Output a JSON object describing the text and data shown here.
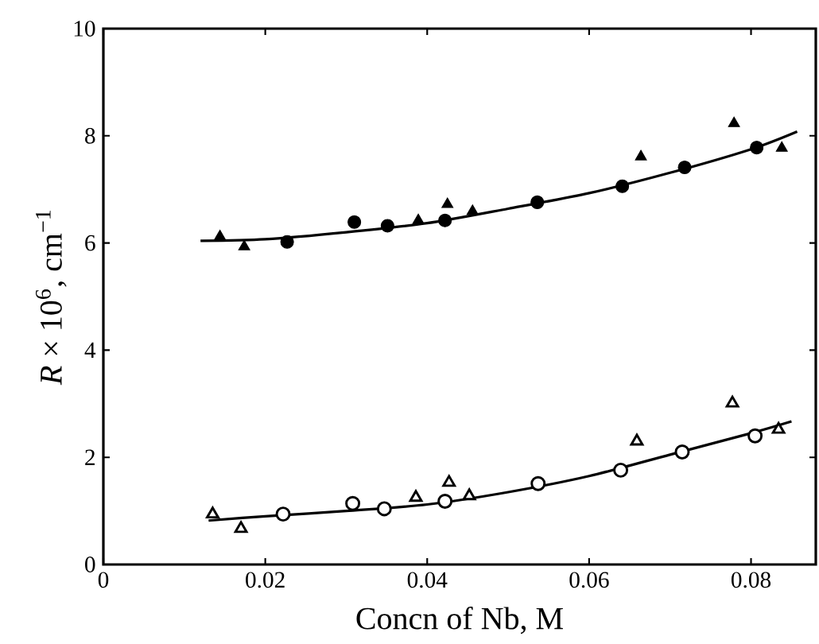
{
  "chart_data": {
    "type": "scatter",
    "xlabel": "Concn of Nb, M",
    "ylabel": "*R* × 10$^{6}$, cm$^{−1}$",
    "xlim": [
      0,
      0.088
    ],
    "ylim": [
      0,
      10
    ],
    "xticks": [
      0,
      0.02,
      0.04,
      0.06,
      0.08
    ],
    "yticks": [
      0,
      2,
      4,
      6,
      8,
      10
    ],
    "grid": false,
    "series": [
      {
        "marker": "circle",
        "color": "#000000",
        "x": [
          0.0227,
          0.031,
          0.0351,
          0.0422,
          0.0536,
          0.0641,
          0.0718,
          0.0807
        ],
        "values": [
          6.02,
          6.39,
          6.32,
          6.42,
          6.76,
          7.06,
          7.41,
          7.78
        ]
      },
      {
        "marker": "triangle",
        "color": "#000000",
        "x": [
          0.0144,
          0.0174,
          0.0389,
          0.0425,
          0.0456,
          0.0664,
          0.0779,
          0.0838
        ],
        "values": [
          6.12,
          5.93,
          6.42,
          6.72,
          6.59,
          7.61,
          8.23,
          7.77
        ]
      },
      {
        "type": "line",
        "marker": "none",
        "color": "#000000",
        "x": [
          0.012,
          0.02,
          0.03,
          0.04,
          0.05,
          0.06,
          0.07,
          0.08,
          0.0857
        ],
        "values": [
          6.04,
          6.07,
          6.2,
          6.37,
          6.64,
          6.93,
          7.31,
          7.75,
          8.08
        ]
      },
      {
        "marker": "circle",
        "color": "#000000",
        "x": [
          0.0222,
          0.0308,
          0.0347,
          0.0422,
          0.0537,
          0.0639,
          0.0715,
          0.0805
        ],
        "values": [
          0.94,
          1.14,
          1.04,
          1.18,
          1.51,
          1.76,
          2.1,
          2.4
        ]
      },
      {
        "marker": "triangle",
        "color": "#000000",
        "x": [
          0.0135,
          0.017,
          0.0386,
          0.0427,
          0.0452,
          0.0659,
          0.0777,
          0.0834
        ],
        "values": [
          0.94,
          0.67,
          1.25,
          1.53,
          1.28,
          2.3,
          3.01,
          2.52
        ]
      },
      {
        "type": "line",
        "marker": "none",
        "color": "#000000",
        "x": [
          0.013,
          0.02,
          0.03,
          0.04,
          0.05,
          0.06,
          0.07,
          0.08,
          0.085
        ],
        "values": [
          0.82,
          0.9,
          1.0,
          1.12,
          1.35,
          1.65,
          2.05,
          2.45,
          2.67
        ]
      }
    ]
  }
}
